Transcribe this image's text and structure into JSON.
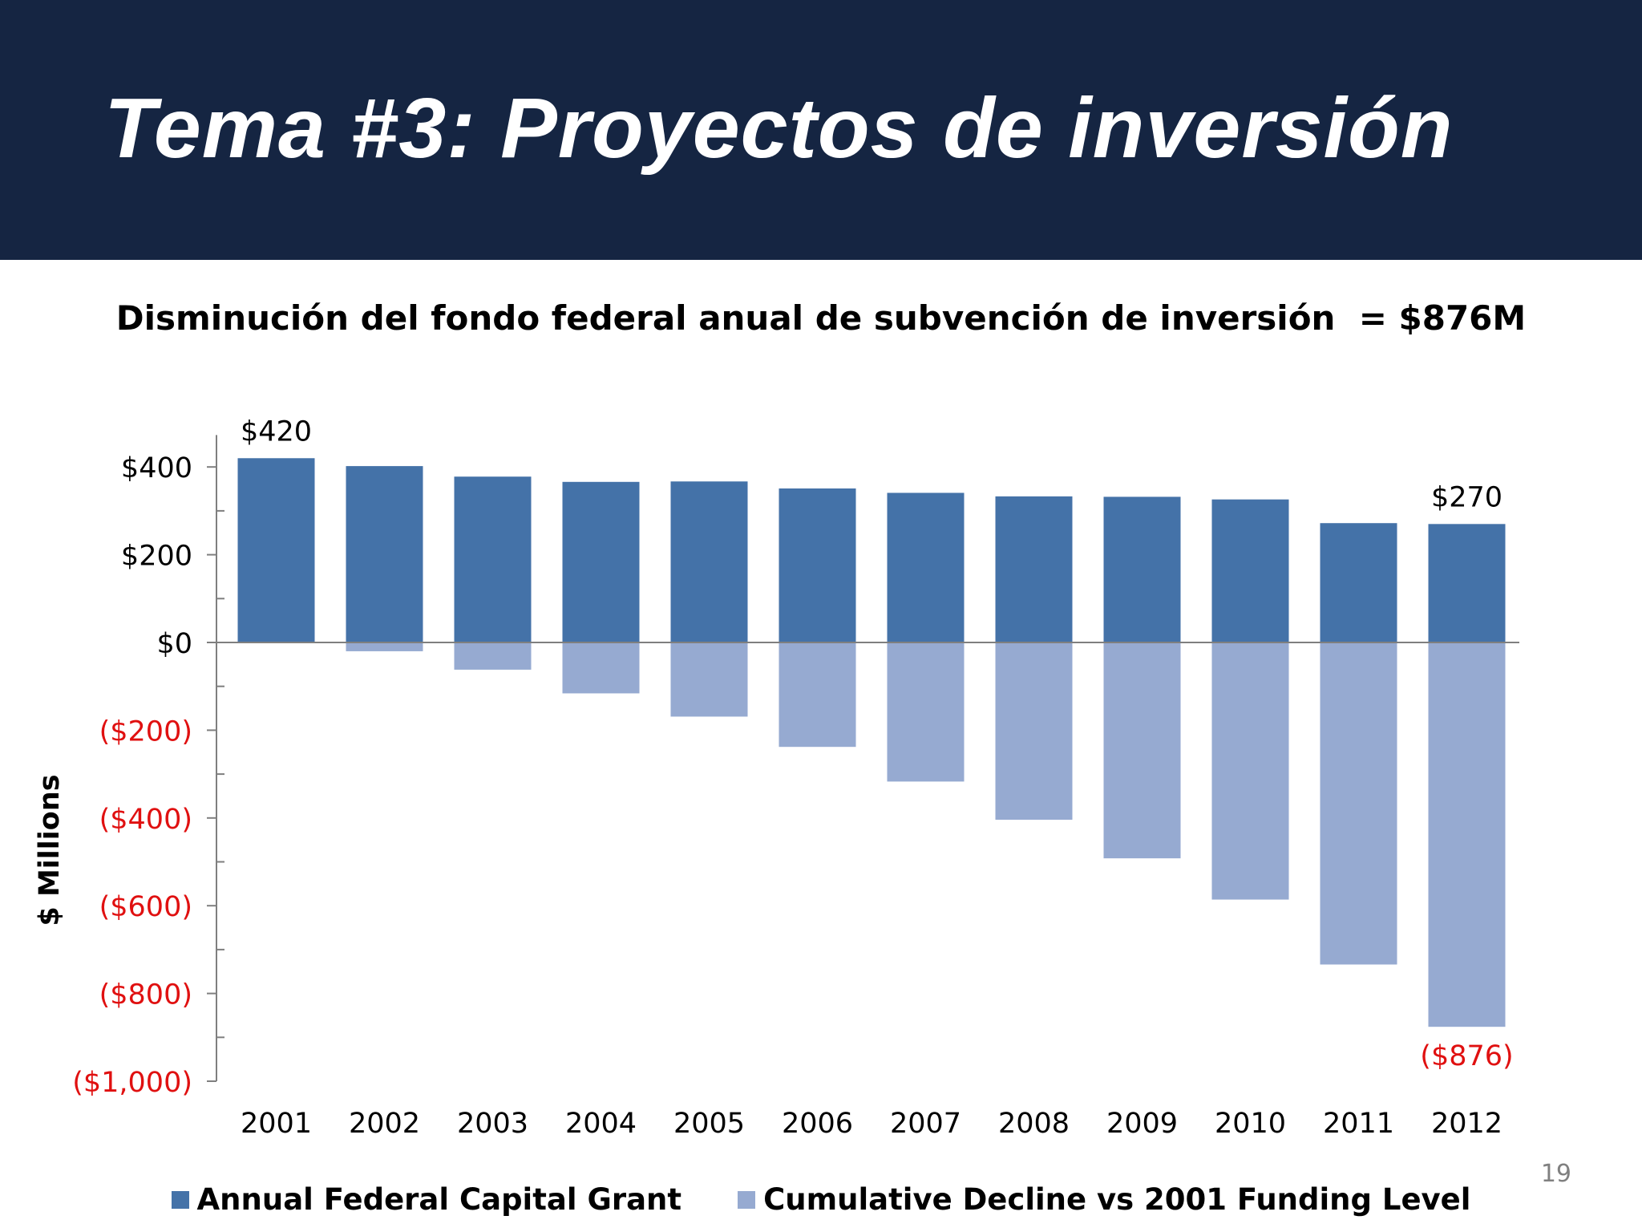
{
  "slide": {
    "title": "Tema #3: Proyectos de inversión",
    "page_number": "19"
  },
  "colors": {
    "header_bg": "#152542",
    "grant_bar": "#4472a8",
    "decline_bar": "#96aad1",
    "negative_label": "#e01010"
  },
  "chart_data": {
    "type": "bar",
    "title": "Disminución del fondo federal anual de subvención de inversión  = $876M",
    "ylabel": "$ Millions",
    "xlabel": "",
    "categories": [
      "2001",
      "2002",
      "2003",
      "2004",
      "2005",
      "2006",
      "2007",
      "2008",
      "2009",
      "2010",
      "2011",
      "2012"
    ],
    "series": [
      {
        "name": "Annual Federal Capital Grant",
        "color": "#4472a8",
        "values": [
          420,
          402,
          378,
          366,
          367,
          351,
          341,
          333,
          332,
          326,
          272,
          270
        ]
      },
      {
        "name": "Cumulative Decline vs 2001 Funding Level",
        "color": "#96aad1",
        "values": [
          0,
          -20,
          -62,
          -116,
          -169,
          -238,
          -317,
          -404,
          -492,
          -586,
          -734,
          -876
        ]
      }
    ],
    "ylim": [
      -1000,
      440
    ],
    "yticks": [
      {
        "value": 400,
        "label": "$400",
        "negative": false
      },
      {
        "value": 200,
        "label": "$200",
        "negative": false
      },
      {
        "value": 0,
        "label": "$0",
        "negative": false
      },
      {
        "value": -200,
        "label": "($200)",
        "negative": true
      },
      {
        "value": -400,
        "label": "($400)",
        "negative": true
      },
      {
        "value": -600,
        "label": "($600)",
        "negative": true
      },
      {
        "value": -800,
        "label": "($800)",
        "negative": true
      },
      {
        "value": -1000,
        "label": "($1,000)",
        "negative": true
      }
    ],
    "data_labels": [
      {
        "category": "2001",
        "series": 0,
        "text": "$420",
        "negative": false
      },
      {
        "category": "2012",
        "series": 0,
        "text": "$270",
        "negative": false
      },
      {
        "category": "2012",
        "series": 1,
        "text": "($876)",
        "negative": true
      }
    ],
    "legend": "bottom",
    "grid": false
  }
}
